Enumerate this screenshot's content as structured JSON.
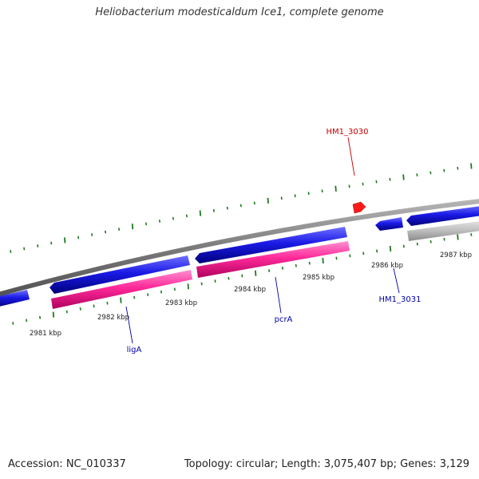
{
  "title": "Heliobacterium modesticaldum Ice1, complete genome",
  "footer": {
    "accession": "Accession: NC_010337",
    "topology": "Topology: circular; Length: 3,075,407 bp; Genes: 3,129"
  },
  "colors": {
    "backbone": "#8a8a8a",
    "cds_forward": "#1a1ae6",
    "cds_reverse": "#ff2a9a",
    "gene_highlight": "#ff1a1a",
    "gene_grey": "#bdbdbd",
    "tick": "#1f7a1f",
    "label_blue": "#0000aa",
    "label_red": "#cc0000"
  },
  "scale": {
    "ticks": [
      "2981 kbp",
      "2982 kbp",
      "2983 kbp",
      "2984 kbp",
      "2985 kbp",
      "2986 kbp",
      "2987 kbp"
    ]
  },
  "genes": [
    {
      "label": "ligA",
      "color": "label_blue"
    },
    {
      "label": "pcrA",
      "color": "label_blue"
    },
    {
      "label": "HM1_3030",
      "color": "label_red"
    },
    {
      "label": "HM1_3031",
      "color": "label_blue"
    }
  ]
}
